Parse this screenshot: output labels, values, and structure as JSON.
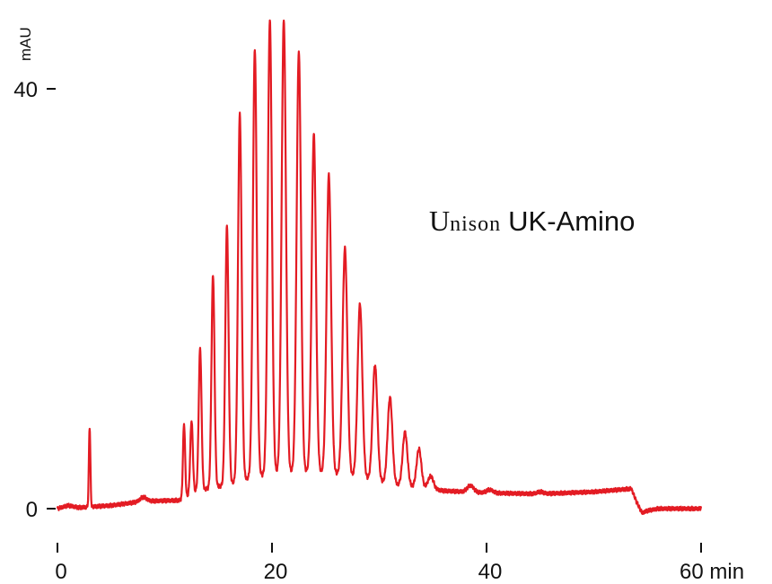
{
  "chart_data": {
    "type": "line",
    "ylabel": "mAU",
    "x_unit": "min",
    "xlim": [
      0,
      60
    ],
    "ylim": [
      0,
      40
    ],
    "x_ticks": [
      0,
      20,
      40,
      60
    ],
    "x_tick_labels": [
      "0",
      "20",
      "40",
      "60 min"
    ],
    "y_ticks": [
      0,
      40
    ],
    "y_tick_labels": [
      "0",
      "40"
    ],
    "annotation": {
      "brand": "Unison",
      "product": "UK-Amino"
    },
    "line_color": "#e31b23",
    "baseline": [
      [
        0,
        0
      ],
      [
        1,
        0.3
      ],
      [
        2,
        0.1
      ],
      [
        5,
        0.3
      ],
      [
        8,
        0.7
      ],
      [
        11.5,
        0.8
      ],
      [
        13,
        1.7
      ],
      [
        15,
        2.1
      ],
      [
        17,
        2.6
      ],
      [
        18,
        3.0
      ],
      [
        20,
        3.3
      ],
      [
        22,
        3.5
      ],
      [
        24,
        3.5
      ],
      [
        26,
        3.3
      ],
      [
        28,
        3.0
      ],
      [
        30,
        2.6
      ],
      [
        32,
        2.2
      ],
      [
        34,
        2.0
      ],
      [
        36,
        1.7
      ],
      [
        38,
        1.6
      ],
      [
        40,
        1.5
      ],
      [
        45,
        1.4
      ],
      [
        50,
        1.6
      ],
      [
        53.5,
        1.9
      ],
      [
        54,
        0.6
      ],
      [
        54.5,
        -0.4
      ],
      [
        55,
        -0.2
      ],
      [
        56,
        0
      ],
      [
        60,
        0
      ]
    ],
    "peaks": [
      {
        "x": 3.0,
        "y": 7.8,
        "width": 0.07
      },
      {
        "x": 8.0,
        "y": 1.1,
        "width": 0.3
      },
      {
        "x": 11.8,
        "y": 8.1,
        "width": 0.1
      },
      {
        "x": 12.5,
        "y": 8.4,
        "width": 0.12
      },
      {
        "x": 13.3,
        "y": 15.3,
        "width": 0.13
      },
      {
        "x": 14.5,
        "y": 22.3,
        "width": 0.14
      },
      {
        "x": 15.8,
        "y": 26.9,
        "width": 0.15
      },
      {
        "x": 17.0,
        "y": 37.6,
        "width": 0.17
      },
      {
        "x": 18.4,
        "y": 43.8,
        "width": 0.18
      },
      {
        "x": 19.8,
        "y": 46.6,
        "width": 0.19
      },
      {
        "x": 21.1,
        "y": 46.6,
        "width": 0.2
      },
      {
        "x": 22.5,
        "y": 43.6,
        "width": 0.2
      },
      {
        "x": 23.9,
        "y": 35.7,
        "width": 0.2
      },
      {
        "x": 25.3,
        "y": 31.8,
        "width": 0.21
      },
      {
        "x": 26.8,
        "y": 24.8,
        "width": 0.22
      },
      {
        "x": 28.2,
        "y": 19.5,
        "width": 0.22
      },
      {
        "x": 29.6,
        "y": 13.7,
        "width": 0.22
      },
      {
        "x": 31.0,
        "y": 10.6,
        "width": 0.22
      },
      {
        "x": 32.4,
        "y": 7.3,
        "width": 0.22
      },
      {
        "x": 33.7,
        "y": 5.7,
        "width": 0.22
      },
      {
        "x": 34.8,
        "y": 3.1,
        "width": 0.25
      },
      {
        "x": 38.5,
        "y": 2.2,
        "width": 0.3
      },
      {
        "x": 40.3,
        "y": 1.8,
        "width": 0.3
      },
      {
        "x": 45.0,
        "y": 1.6,
        "width": 0.3
      }
    ]
  }
}
